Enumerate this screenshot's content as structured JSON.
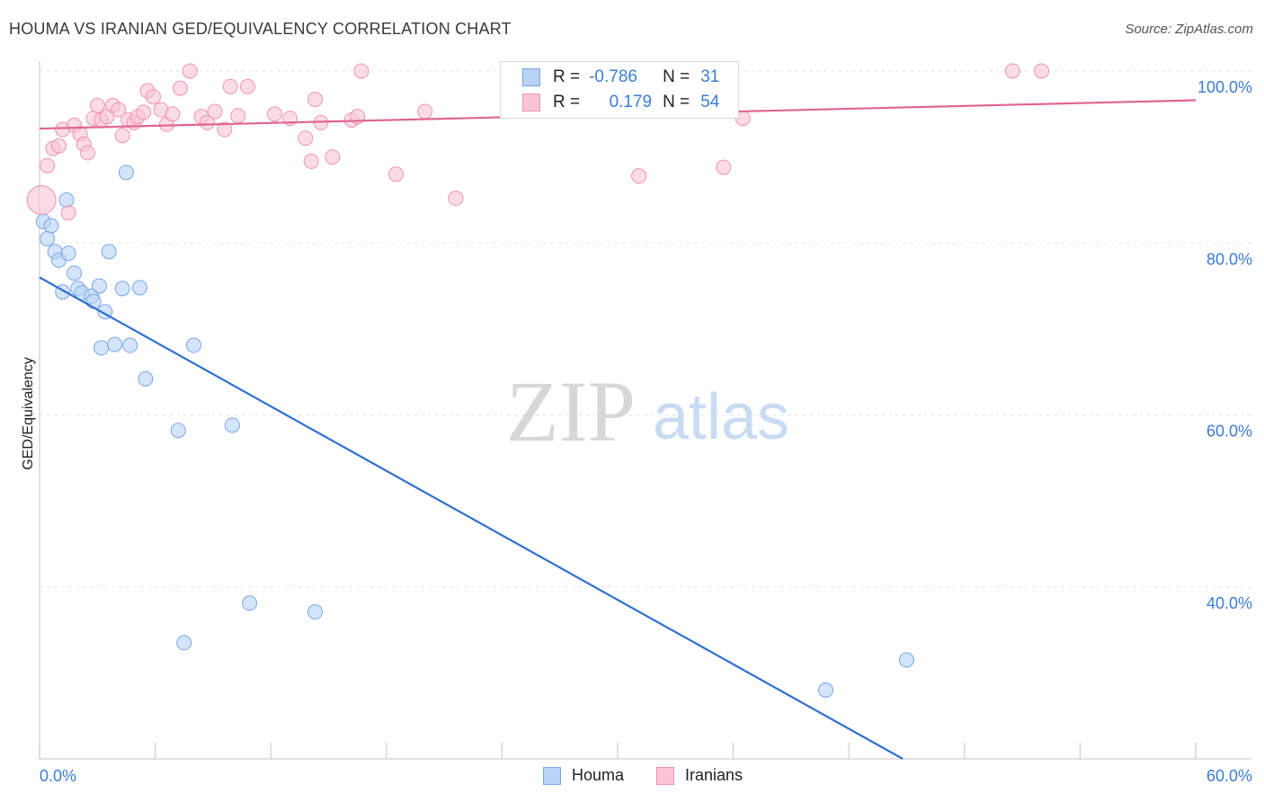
{
  "title": "HOUMA VS IRANIAN GED/EQUIVALENCY CORRELATION CHART",
  "source": "Source: ZipAtlas.com",
  "watermark": {
    "zip": "ZIP",
    "atlas": "atlas"
  },
  "legend": {
    "r_label": "R =",
    "n_label": "N =",
    "rows": [
      {
        "name": "Houma",
        "r": "-0.786",
        "n": "31",
        "fill": "#b8d3f5",
        "stroke": "#7aa6e6"
      },
      {
        "name": "Iranians",
        "r": "0.179",
        "n": "54",
        "fill": "#f9c4d6",
        "stroke": "#ef93b3"
      }
    ]
  },
  "chart_data": {
    "type": "scatter",
    "title": "HOUMA VS IRANIAN GED/EQUIVALENCY CORRELATION CHART",
    "xlabel": "",
    "ylabel": "GED/Equivalency",
    "xlim": [
      0,
      60
    ],
    "ylim": [
      20,
      102
    ],
    "x_tick_labels": [
      "0.0%",
      "60.0%"
    ],
    "y_tick_labels": [
      {
        "value": 40,
        "label": "40.0%"
      },
      {
        "value": 60,
        "label": "60.0%"
      },
      {
        "value": 80,
        "label": "80.0%"
      },
      {
        "value": 100,
        "label": "100.0%"
      }
    ],
    "grid": true,
    "series": [
      {
        "name": "Houma",
        "color": "#7aa6e6",
        "fill": "#b8d3f5",
        "line_color": "#2f6fd0",
        "trend": {
          "x0": 0,
          "y0": 76,
          "x1": 44.8,
          "y1": 20
        },
        "points": [
          [
            0.2,
            82.5
          ],
          [
            0.6,
            82.0
          ],
          [
            0.4,
            80.5
          ],
          [
            0.8,
            79.0
          ],
          [
            1.0,
            78.0
          ],
          [
            1.5,
            78.8
          ],
          [
            1.4,
            85.0
          ],
          [
            1.8,
            76.5
          ],
          [
            1.2,
            74.3
          ],
          [
            2.0,
            74.7
          ],
          [
            2.2,
            74.2
          ],
          [
            2.7,
            73.8
          ],
          [
            2.8,
            73.2
          ],
          [
            3.1,
            75.0
          ],
          [
            3.4,
            72.0
          ],
          [
            3.6,
            79.0
          ],
          [
            4.3,
            74.7
          ],
          [
            5.2,
            74.8
          ],
          [
            3.2,
            67.8
          ],
          [
            3.9,
            68.2
          ],
          [
            4.7,
            68.1
          ],
          [
            8.0,
            68.1
          ],
          [
            5.5,
            64.2
          ],
          [
            7.2,
            58.2
          ],
          [
            10.0,
            58.8
          ],
          [
            4.5,
            88.2
          ],
          [
            10.9,
            38.1
          ],
          [
            14.3,
            37.1
          ],
          [
            7.5,
            33.5
          ],
          [
            45.0,
            31.5
          ],
          [
            40.8,
            28.0
          ]
        ]
      },
      {
        "name": "Iranians",
        "color": "#ef93b3",
        "fill": "#f9c4d6",
        "line_color": "#e0668f",
        "trend": {
          "x0": 0,
          "y0": 93.3,
          "x1": 60,
          "y1": 96.6
        },
        "points": [
          [
            0.1,
            85.0
          ],
          [
            0.4,
            89.0
          ],
          [
            0.7,
            91.0
          ],
          [
            1.0,
            91.3
          ],
          [
            1.2,
            93.2
          ],
          [
            1.5,
            83.5
          ],
          [
            1.8,
            93.7
          ],
          [
            2.1,
            92.7
          ],
          [
            2.3,
            91.5
          ],
          [
            2.5,
            90.5
          ],
          [
            2.8,
            94.5
          ],
          [
            3.0,
            96.0
          ],
          [
            3.2,
            94.3
          ],
          [
            3.5,
            94.7
          ],
          [
            3.8,
            96.0
          ],
          [
            4.1,
            95.5
          ],
          [
            4.3,
            92.5
          ],
          [
            4.6,
            94.3
          ],
          [
            4.9,
            94.0
          ],
          [
            5.1,
            94.7
          ],
          [
            5.4,
            95.2
          ],
          [
            5.6,
            97.7
          ],
          [
            5.9,
            97.0
          ],
          [
            6.3,
            95.5
          ],
          [
            6.6,
            93.8
          ],
          [
            6.9,
            95.0
          ],
          [
            7.3,
            98.0
          ],
          [
            7.8,
            100.0
          ],
          [
            8.4,
            94.7
          ],
          [
            8.7,
            94.0
          ],
          [
            9.1,
            95.3
          ],
          [
            9.6,
            93.2
          ],
          [
            9.9,
            98.2
          ],
          [
            10.3,
            94.8
          ],
          [
            10.8,
            98.2
          ],
          [
            12.2,
            95.0
          ],
          [
            13.0,
            94.5
          ],
          [
            13.8,
            92.2
          ],
          [
            14.3,
            96.7
          ],
          [
            14.1,
            89.5
          ],
          [
            14.6,
            94.0
          ],
          [
            15.2,
            90.0
          ],
          [
            16.2,
            94.3
          ],
          [
            16.5,
            94.7
          ],
          [
            16.7,
            100.0
          ],
          [
            18.5,
            88.0
          ],
          [
            20.0,
            95.3
          ],
          [
            21.6,
            85.2
          ],
          [
            25.5,
            95.7
          ],
          [
            31.1,
            87.8
          ],
          [
            35.5,
            88.8
          ],
          [
            36.5,
            94.5
          ],
          [
            50.5,
            100.0
          ],
          [
            52.0,
            100.0
          ]
        ]
      }
    ]
  }
}
